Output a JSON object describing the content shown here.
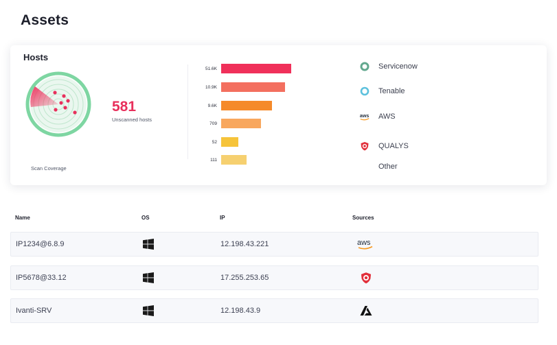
{
  "page": {
    "title": "Assets"
  },
  "hosts_card": {
    "title": "Hosts",
    "unscanned_count": "581",
    "unscanned_label": "Unscanned hosts",
    "coverage_label": "Scan Coverage",
    "bars": [
      {
        "label": "51.6K",
        "value": 51600,
        "color": "#f0305a"
      },
      {
        "label": "10.9K",
        "value": 10900,
        "color": "#f36f5f"
      },
      {
        "label": "9.6K",
        "value": 9600,
        "color": "#f58a2a"
      },
      {
        "label": "709",
        "value": 709,
        "color": "#f8a75e"
      },
      {
        "label": "52",
        "value": 52,
        "color": "#f6c43a"
      },
      {
        "label": "111",
        "value": 111,
        "color": "#f6d070"
      }
    ],
    "sources": [
      {
        "label": "Servicenow",
        "icon": "servicenow-icon",
        "color": "#62a88e"
      },
      {
        "label": "Tenable",
        "icon": "tenable-icon",
        "color": "#5dc1dd"
      },
      {
        "label": "AWS",
        "icon": "aws-icon",
        "color": "#232f3e"
      },
      {
        "label": "QUALYS",
        "icon": "qualys-icon",
        "color": "#e2303b"
      },
      {
        "label": "Other",
        "icon": "",
        "color": ""
      }
    ]
  },
  "table": {
    "columns": [
      "Name",
      "OS",
      "IP",
      "Sources"
    ],
    "rows": [
      {
        "name": "IP1234@6.8.9",
        "os": "windows-icon",
        "ip": "12.198.43.221",
        "source": "aws-icon"
      },
      {
        "name": "IP5678@33.12",
        "os": "windows-icon",
        "ip": "17.255.253.65",
        "source": "qualys-icon"
      },
      {
        "name": "Ivanti-SRV",
        "os": "windows-icon",
        "ip": "12.198.43.9",
        "source": "azure-icon"
      }
    ]
  }
}
